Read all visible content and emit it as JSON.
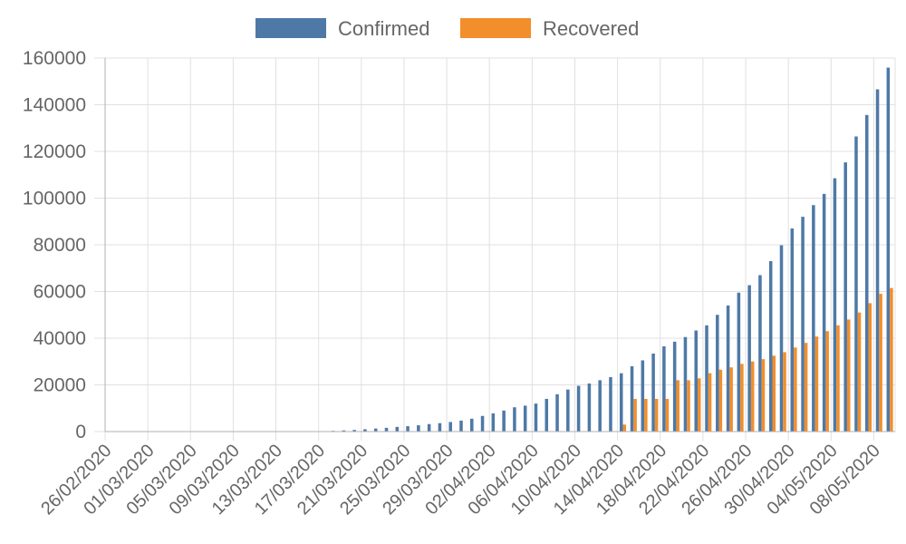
{
  "chart_data": {
    "type": "bar",
    "title": "",
    "xlabel": "",
    "ylabel": "",
    "ylim": [
      0,
      160000
    ],
    "yticks": [
      0,
      20000,
      40000,
      60000,
      80000,
      100000,
      120000,
      140000,
      160000
    ],
    "grid": true,
    "legend_position": "top-center",
    "categories": [
      "26/02/2020",
      "27/02/2020",
      "28/02/2020",
      "29/02/2020",
      "01/03/2020",
      "02/03/2020",
      "03/03/2020",
      "04/03/2020",
      "05/03/2020",
      "06/03/2020",
      "07/03/2020",
      "08/03/2020",
      "09/03/2020",
      "10/03/2020",
      "11/03/2020",
      "12/03/2020",
      "13/03/2020",
      "14/03/2020",
      "15/03/2020",
      "16/03/2020",
      "17/03/2020",
      "18/03/2020",
      "19/03/2020",
      "20/03/2020",
      "21/03/2020",
      "22/03/2020",
      "23/03/2020",
      "24/03/2020",
      "25/03/2020",
      "26/03/2020",
      "27/03/2020",
      "28/03/2020",
      "29/03/2020",
      "30/03/2020",
      "31/03/2020",
      "01/04/2020",
      "02/04/2020",
      "03/04/2020",
      "04/04/2020",
      "05/04/2020",
      "06/04/2020",
      "07/04/2020",
      "08/04/2020",
      "09/04/2020",
      "10/04/2020",
      "11/04/2020",
      "12/04/2020",
      "13/04/2020",
      "14/04/2020",
      "15/04/2020",
      "16/04/2020",
      "17/04/2020",
      "18/04/2020",
      "19/04/2020",
      "20/04/2020",
      "21/04/2020",
      "22/04/2020",
      "23/04/2020",
      "24/04/2020",
      "25/04/2020",
      "26/04/2020",
      "27/04/2020",
      "28/04/2020",
      "29/04/2020",
      "30/04/2020",
      "01/05/2020",
      "02/05/2020",
      "03/05/2020",
      "04/05/2020",
      "05/05/2020",
      "06/05/2020",
      "07/05/2020",
      "08/05/2020",
      "09/05/2020"
    ],
    "x_tick_labels": [
      "26/02/2020",
      "01/03/2020",
      "05/03/2020",
      "09/03/2020",
      "13/03/2020",
      "17/03/2020",
      "21/03/2020",
      "25/03/2020",
      "29/03/2020",
      "02/04/2020",
      "06/04/2020",
      "10/04/2020",
      "14/04/2020",
      "18/04/2020",
      "22/04/2020",
      "26/04/2020",
      "30/04/2020",
      "04/05/2020",
      "08/05/2020"
    ],
    "series": [
      {
        "name": "Confirmed",
        "color": "#4e79a7",
        "values": [
          0,
          0,
          0,
          0,
          0,
          0,
          0,
          0,
          0,
          0,
          0,
          0,
          0,
          0,
          0,
          0,
          0,
          0,
          0,
          100,
          200,
          300,
          500,
          700,
          1000,
          1300,
          1600,
          2000,
          2300,
          2700,
          3200,
          3600,
          4100,
          4700,
          5500,
          6700,
          7800,
          9000,
          10400,
          11100,
          12000,
          14000,
          16000,
          18000,
          19600,
          20600,
          22000,
          23300,
          25000,
          28000,
          30500,
          33400,
          36500,
          38500,
          40500,
          43300,
          45500,
          50000,
          54000,
          59500,
          62700,
          67000,
          73000,
          79800,
          87000,
          92000,
          97000,
          101800,
          108500,
          115300,
          126400,
          135600,
          146600,
          155900
        ]
      },
      {
        "name": "Recovered",
        "color": "#f28e2b",
        "values": [
          0,
          0,
          0,
          0,
          0,
          0,
          0,
          0,
          0,
          0,
          0,
          0,
          0,
          0,
          0,
          0,
          0,
          0,
          0,
          0,
          0,
          0,
          0,
          0,
          0,
          0,
          0,
          0,
          0,
          0,
          0,
          0,
          0,
          0,
          0,
          0,
          0,
          0,
          0,
          0,
          0,
          0,
          0,
          0,
          0,
          0,
          0,
          0,
          3000,
          14000,
          14000,
          14000,
          14000,
          22000,
          22000,
          22800,
          25000,
          26500,
          27500,
          29000,
          30000,
          31000,
          32500,
          34000,
          36000,
          38000,
          40700,
          43000,
          45500,
          48000,
          51000,
          55000,
          59000,
          61500
        ]
      }
    ]
  }
}
